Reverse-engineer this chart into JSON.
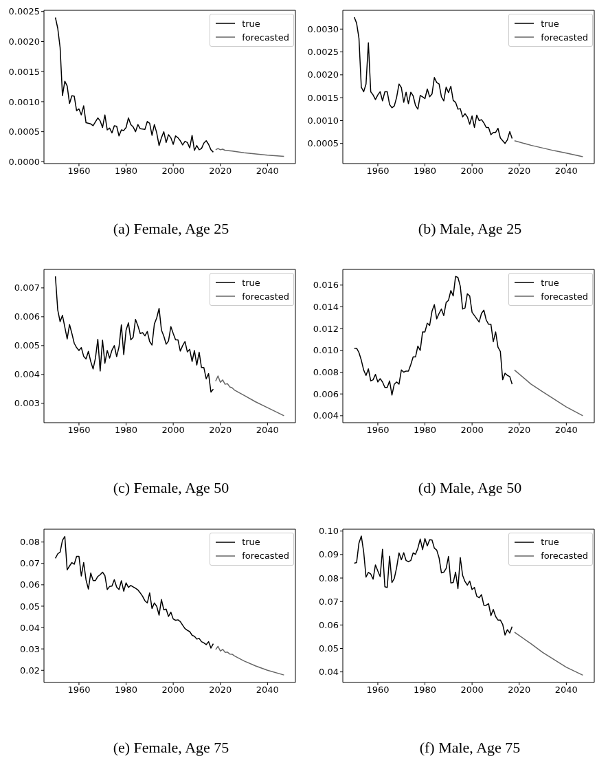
{
  "chart_data": [
    {
      "type": "line",
      "title": "(a) Female, Age 25",
      "xlim": [
        1945.15,
        2051.85
      ],
      "xticks": [
        1960,
        1980,
        2000,
        2020,
        2040
      ],
      "ylim": [
        -3e-05,
        0.00252
      ],
      "yticks": [
        {
          "value": 0,
          "label": "0.0000"
        },
        {
          "value": 0.0005,
          "label": "0.0005"
        },
        {
          "value": 0.001,
          "label": "0.0010"
        },
        {
          "value": 0.0015,
          "label": "0.0015"
        },
        {
          "value": 0.002,
          "label": "0.0020"
        },
        {
          "value": 0.0025,
          "label": "0.0025"
        }
      ],
      "legend": "top right",
      "series": [
        {
          "name": "true",
          "color": "#000000",
          "x": [
            1950,
            1951,
            1952,
            1953,
            1954,
            1955,
            1956,
            1957,
            1958,
            1959,
            1960,
            1961,
            1962,
            1963,
            1965,
            1966,
            1968,
            1969,
            1970,
            1971,
            1972,
            1973,
            1974,
            1975,
            1976,
            1977,
            1978,
            1979,
            1980,
            1981,
            1982,
            1983,
            1984,
            1985,
            1986,
            1988,
            1989,
            1990,
            1991,
            1992,
            1993,
            1994,
            1995,
            1996,
            1997,
            1998,
            1999,
            2000,
            2001,
            2002,
            2003,
            2004,
            2005,
            2006,
            2007,
            2008,
            2009,
            2010,
            2011,
            2012,
            2013,
            2014,
            2015,
            2016,
            2017
          ],
          "values": [
            0.0024,
            0.00222,
            0.0019,
            0.0011,
            0.00134,
            0.00126,
            0.00097,
            0.0011,
            0.00109,
            0.00085,
            0.00088,
            0.00078,
            0.00093,
            0.00065,
            0.00063,
            0.0006,
            0.00073,
            0.00068,
            0.00057,
            0.00078,
            0.00053,
            0.00056,
            0.00048,
            0.0006,
            0.00059,
            0.00043,
            0.00053,
            0.00052,
            0.00057,
            0.00073,
            0.00062,
            0.00058,
            0.0005,
            0.00062,
            0.00055,
            0.00054,
            0.00067,
            0.00064,
            0.00044,
            0.00062,
            0.00048,
            0.00027,
            0.0004,
            0.0005,
            0.00032,
            0.00045,
            0.0004,
            0.00029,
            0.00043,
            0.0004,
            0.00035,
            0.00028,
            0.00034,
            0.00032,
            0.00023,
            0.00044,
            0.00019,
            0.00027,
            0.0002,
            0.00022,
            0.00031,
            0.00035,
            0.00029,
            0.0002,
            0.00016
          ]
        },
        {
          "name": "forecasted",
          "color": "#666666",
          "x": [
            2018,
            2019,
            2020,
            2021,
            2022,
            2025,
            2030,
            2035,
            2040,
            2047
          ],
          "values": [
            0.0002,
            0.00022,
            0.0002,
            0.00021,
            0.00019,
            0.00018,
            0.00015,
            0.00013,
            0.00011,
            9e-05
          ]
        }
      ]
    },
    {
      "type": "line",
      "title": "(b) Male, Age 25",
      "xlim": [
        1945.15,
        2051.85
      ],
      "xticks": [
        1960,
        1980,
        2000,
        2020,
        2040
      ],
      "ylim": [
        6e-05,
        0.00341
      ],
      "yticks": [
        {
          "value": 0.0005,
          "label": "0.0005"
        },
        {
          "value": 0.001,
          "label": "0.0010"
        },
        {
          "value": 0.0015,
          "label": "0.0015"
        },
        {
          "value": 0.002,
          "label": "0.0020"
        },
        {
          "value": 0.0025,
          "label": "0.0025"
        },
        {
          "value": 0.003,
          "label": "0.0030"
        }
      ],
      "legend": "top right",
      "series": [
        {
          "name": "true",
          "color": "#000000",
          "x": [
            1950,
            1951,
            1952,
            1953,
            1954,
            1955,
            1956,
            1957,
            1958,
            1959,
            1960,
            1961,
            1962,
            1963,
            1964,
            1965,
            1966,
            1967,
            1968,
            1969,
            1970,
            1971,
            1972,
            1973,
            1974,
            1975,
            1976,
            1977,
            1978,
            1979,
            1980,
            1981,
            1982,
            1983,
            1984,
            1985,
            1986,
            1987,
            1988,
            1989,
            1990,
            1991,
            1992,
            1993,
            1994,
            1995,
            1996,
            1997,
            1998,
            1999,
            2000,
            2001,
            2002,
            2003,
            2004,
            2005,
            2006,
            2007,
            2008,
            2009,
            2010,
            2011,
            2012,
            2013,
            2014,
            2015,
            2016,
            2017
          ],
          "values": [
            0.00326,
            0.00313,
            0.0028,
            0.00173,
            0.00163,
            0.0018,
            0.0027,
            0.00163,
            0.00156,
            0.00146,
            0.00156,
            0.00163,
            0.00143,
            0.00163,
            0.00163,
            0.00135,
            0.00128,
            0.00132,
            0.00151,
            0.0018,
            0.00172,
            0.0014,
            0.00162,
            0.00137,
            0.00162,
            0.00154,
            0.00133,
            0.00125,
            0.00155,
            0.00152,
            0.00148,
            0.00169,
            0.00152,
            0.00158,
            0.00194,
            0.00183,
            0.0018,
            0.00152,
            0.00143,
            0.00173,
            0.00161,
            0.00175,
            0.00144,
            0.0014,
            0.00125,
            0.00126,
            0.00108,
            0.00115,
            0.00108,
            0.00092,
            0.0011,
            0.00085,
            0.00112,
            0.001,
            0.00102,
            0.00095,
            0.00085,
            0.00085,
            0.00069,
            0.00074,
            0.00074,
            0.00083,
            0.00062,
            0.00056,
            0.0005,
            0.00058,
            0.00076,
            0.00061
          ]
        },
        {
          "name": "forecasted",
          "color": "#666666",
          "x": [
            2018,
            2025,
            2030,
            2035,
            2040,
            2047
          ],
          "values": [
            0.00056,
            0.00046,
            0.0004,
            0.00034,
            0.00029,
            0.00021
          ]
        }
      ]
    },
    {
      "type": "line",
      "title": "(c) Female, Age 50",
      "xlim": [
        1945.15,
        2051.85
      ],
      "xticks": [
        1960,
        1980,
        2000,
        2020,
        2040
      ],
      "ylim": [
        0.00233,
        0.00764
      ],
      "yticks": [
        {
          "value": 0.003,
          "label": "0.003"
        },
        {
          "value": 0.004,
          "label": "0.004"
        },
        {
          "value": 0.005,
          "label": "0.005"
        },
        {
          "value": 0.006,
          "label": "0.006"
        },
        {
          "value": 0.007,
          "label": "0.007"
        }
      ],
      "legend": "top right",
      "series": [
        {
          "name": "true",
          "color": "#000000",
          "x": [
            1950,
            1951,
            1952,
            1953,
            1955,
            1956,
            1957,
            1958,
            1959,
            1960,
            1961,
            1962,
            1963,
            1964,
            1965,
            1966,
            1967,
            1968,
            1969,
            1970,
            1971,
            1972,
            1973,
            1974,
            1975,
            1976,
            1977,
            1978,
            1979,
            1980,
            1981,
            1982,
            1983,
            1984,
            1985,
            1986,
            1987,
            1988,
            1989,
            1990,
            1991,
            1992,
            1993,
            1994,
            1995,
            1996,
            1997,
            1998,
            1999,
            2000,
            2001,
            2002,
            2003,
            2004,
            2005,
            2006,
            2007,
            2008,
            2009,
            2010,
            2011,
            2012,
            2013,
            2014,
            2015,
            2016,
            2017
          ],
          "values": [
            0.0074,
            0.00623,
            0.00583,
            0.00605,
            0.00523,
            0.00573,
            0.00542,
            0.00508,
            0.00493,
            0.00483,
            0.00493,
            0.00463,
            0.00454,
            0.0048,
            0.00445,
            0.00419,
            0.00457,
            0.00522,
            0.00412,
            0.00519,
            0.00439,
            0.00483,
            0.00457,
            0.00484,
            0.005,
            0.00462,
            0.00496,
            0.00572,
            0.00469,
            0.00554,
            0.00579,
            0.0052,
            0.00529,
            0.00591,
            0.00569,
            0.00542,
            0.00545,
            0.00534,
            0.00549,
            0.00514,
            0.00502,
            0.00575,
            0.00596,
            0.00629,
            0.00554,
            0.00533,
            0.00505,
            0.00516,
            0.00566,
            0.00542,
            0.0052,
            0.0052,
            0.00481,
            0.005,
            0.00514,
            0.00478,
            0.00487,
            0.00445,
            0.00483,
            0.00433,
            0.00477,
            0.00424,
            0.00424,
            0.00385,
            0.00403,
            0.00339,
            0.00349
          ]
        },
        {
          "name": "forecasted",
          "color": "#666666",
          "x": [
            2018,
            2019,
            2020,
            2021,
            2022,
            2023,
            2024,
            2025,
            2026,
            2030,
            2035,
            2040,
            2047
          ],
          "values": [
            0.00377,
            0.00395,
            0.00373,
            0.00381,
            0.00366,
            0.00368,
            0.00357,
            0.00354,
            0.00346,
            0.00328,
            0.00305,
            0.00285,
            0.00257
          ]
        }
      ]
    },
    {
      "type": "line",
      "title": "(d) Male, Age 50",
      "xlim": [
        1945.15,
        2051.85
      ],
      "xticks": [
        1960,
        1980,
        2000,
        2020,
        2040
      ],
      "ylim": [
        0.00336,
        0.01744
      ],
      "yticks": [
        {
          "value": 0.004,
          "label": "0.004"
        },
        {
          "value": 0.006,
          "label": "0.006"
        },
        {
          "value": 0.008,
          "label": "0.008"
        },
        {
          "value": 0.01,
          "label": "0.010"
        },
        {
          "value": 0.012,
          "label": "0.012"
        },
        {
          "value": 0.014,
          "label": "0.014"
        },
        {
          "value": 0.016,
          "label": "0.016"
        }
      ],
      "legend": "top right",
      "series": [
        {
          "name": "true",
          "color": "#000000",
          "x": [
            1950,
            1951,
            1952,
            1953,
            1954,
            1955,
            1956,
            1957,
            1958,
            1959,
            1960,
            1961,
            1962,
            1963,
            1964,
            1965,
            1966,
            1967,
            1968,
            1969,
            1970,
            1971,
            1972,
            1973,
            1974,
            1975,
            1976,
            1977,
            1978,
            1979,
            1980,
            1981,
            1982,
            1983,
            1984,
            1985,
            1986,
            1987,
            1988,
            1989,
            1990,
            1991,
            1992,
            1993,
            1994,
            1995,
            1996,
            1997,
            1998,
            1999,
            2000,
            2001,
            2002,
            2003,
            2004,
            2005,
            2006,
            2007,
            2008,
            2009,
            2010,
            2011,
            2012,
            2013,
            2014,
            2015,
            2016,
            2017
          ],
          "values": [
            0.0102,
            0.0102,
            0.0098,
            0.0091,
            0.0082,
            0.0077,
            0.0083,
            0.0072,
            0.0073,
            0.0078,
            0.0071,
            0.0074,
            0.0071,
            0.0066,
            0.0066,
            0.0072,
            0.0059,
            0.0069,
            0.0071,
            0.0069,
            0.0082,
            0.008,
            0.0081,
            0.0081,
            0.0087,
            0.0094,
            0.0094,
            0.0104,
            0.01,
            0.0117,
            0.0117,
            0.0125,
            0.0123,
            0.0136,
            0.0142,
            0.0129,
            0.0134,
            0.0138,
            0.0132,
            0.0144,
            0.0146,
            0.0155,
            0.015,
            0.0168,
            0.0167,
            0.0159,
            0.0138,
            0.0139,
            0.0152,
            0.015,
            0.0135,
            0.0132,
            0.0129,
            0.0126,
            0.0134,
            0.0137,
            0.0128,
            0.0124,
            0.0124,
            0.0108,
            0.0117,
            0.0103,
            0.0099,
            0.0073,
            0.0079,
            0.0077,
            0.0076,
            0.0069
          ]
        },
        {
          "name": "forecasted",
          "color": "#666666",
          "x": [
            2018,
            2025,
            2030,
            2035,
            2040,
            2047
          ],
          "values": [
            0.0082,
            0.0069,
            0.0062,
            0.0055,
            0.0048,
            0.004
          ]
        }
      ]
    },
    {
      "type": "line",
      "title": "(e) Female, Age 75",
      "xlim": [
        1945.15,
        2051.85
      ],
      "xticks": [
        1960,
        1980,
        2000,
        2020,
        2040
      ],
      "ylim": [
        0.0143,
        0.086
      ],
      "yticks": [
        {
          "value": 0.02,
          "label": "0.02"
        },
        {
          "value": 0.03,
          "label": "0.03"
        },
        {
          "value": 0.04,
          "label": "0.04"
        },
        {
          "value": 0.05,
          "label": "0.05"
        },
        {
          "value": 0.06,
          "label": "0.06"
        },
        {
          "value": 0.07,
          "label": "0.07"
        },
        {
          "value": 0.08,
          "label": "0.08"
        }
      ],
      "legend": "top right",
      "series": [
        {
          "name": "true",
          "color": "#000000",
          "x": [
            1950,
            1951,
            1952,
            1953,
            1954,
            1955,
            1956,
            1957,
            1958,
            1959,
            1960,
            1961,
            1962,
            1963,
            1964,
            1965,
            1966,
            1967,
            1968,
            1969,
            1970,
            1971,
            1972,
            1973,
            1974,
            1975,
            1976,
            1977,
            1978,
            1979,
            1980,
            1981,
            1982,
            1983,
            1984,
            1985,
            1986,
            1987,
            1988,
            1989,
            1990,
            1991,
            1992,
            1993,
            1994,
            1995,
            1996,
            1997,
            1998,
            1999,
            2000,
            2001,
            2002,
            2003,
            2004,
            2005,
            2006,
            2007,
            2008,
            2009,
            2010,
            2011,
            2012,
            2013,
            2014,
            2015,
            2016,
            2017
          ],
          "values": [
            0.0724,
            0.0745,
            0.0753,
            0.0808,
            0.0826,
            0.067,
            0.0688,
            0.0704,
            0.0696,
            0.0733,
            0.0733,
            0.0641,
            0.0704,
            0.0623,
            0.058,
            0.0655,
            0.062,
            0.062,
            0.0639,
            0.0647,
            0.0659,
            0.0643,
            0.0578,
            0.0592,
            0.0594,
            0.0624,
            0.0589,
            0.0578,
            0.0619,
            0.057,
            0.0609,
            0.0588,
            0.0597,
            0.059,
            0.0584,
            0.0576,
            0.0562,
            0.0546,
            0.0525,
            0.0515,
            0.0562,
            0.0489,
            0.0515,
            0.0499,
            0.0458,
            0.0531,
            0.0483,
            0.0486,
            0.0452,
            0.0472,
            0.044,
            0.0434,
            0.0436,
            0.0428,
            0.0411,
            0.0395,
            0.0387,
            0.0381,
            0.0364,
            0.0359,
            0.0346,
            0.0349,
            0.0334,
            0.0328,
            0.032,
            0.0334,
            0.0304,
            0.0324
          ]
        },
        {
          "name": "forecasted",
          "color": "#666666",
          "x": [
            2018,
            2019,
            2020,
            2021,
            2022,
            2023,
            2024,
            2025,
            2026,
            2030,
            2035,
            2040,
            2047
          ],
          "values": [
            0.0297,
            0.0312,
            0.029,
            0.0298,
            0.0284,
            0.0285,
            0.0276,
            0.0275,
            0.0267,
            0.0244,
            0.022,
            0.02,
            0.0178
          ]
        }
      ]
    },
    {
      "type": "line",
      "title": "(f) Male, Age 75",
      "xlim": [
        1945.15,
        2051.85
      ],
      "xticks": [
        1960,
        1980,
        2000,
        2020,
        2040
      ],
      "ylim": [
        0.0355,
        0.1008
      ],
      "yticks": [
        {
          "value": 0.04,
          "label": "0.04"
        },
        {
          "value": 0.05,
          "label": "0.05"
        },
        {
          "value": 0.06,
          "label": "0.06"
        },
        {
          "value": 0.07,
          "label": "0.07"
        },
        {
          "value": 0.08,
          "label": "0.08"
        },
        {
          "value": 0.09,
          "label": "0.09"
        },
        {
          "value": 0.1,
          "label": "0.10"
        }
      ],
      "legend": "top right",
      "series": [
        {
          "name": "true",
          "color": "#000000",
          "x": [
            1950,
            1951,
            1952,
            1953,
            1954,
            1955,
            1956,
            1957,
            1958,
            1959,
            1960,
            1961,
            1962,
            1963,
            1964,
            1965,
            1966,
            1967,
            1968,
            1969,
            1970,
            1971,
            1972,
            1973,
            1974,
            1975,
            1976,
            1977,
            1978,
            1979,
            1980,
            1981,
            1982,
            1983,
            1984,
            1985,
            1986,
            1987,
            1988,
            1989,
            1990,
            1991,
            1992,
            1993,
            1994,
            1995,
            1996,
            1997,
            1998,
            1999,
            2000,
            2001,
            2002,
            2003,
            2004,
            2005,
            2006,
            2007,
            2008,
            2009,
            2010,
            2011,
            2012,
            2013,
            2014,
            2015,
            2016,
            2017
          ],
          "values": [
            0.0863,
            0.0866,
            0.0949,
            0.0979,
            0.0912,
            0.0804,
            0.0824,
            0.0817,
            0.0795,
            0.0856,
            0.083,
            0.0806,
            0.0922,
            0.0763,
            0.076,
            0.0893,
            0.0781,
            0.0798,
            0.0845,
            0.0907,
            0.0878,
            0.0908,
            0.0875,
            0.0869,
            0.0875,
            0.0907,
            0.0901,
            0.0927,
            0.0966,
            0.0921,
            0.0968,
            0.0937,
            0.0963,
            0.0962,
            0.0927,
            0.0919,
            0.0886,
            0.0822,
            0.0825,
            0.0841,
            0.0892,
            0.0779,
            0.0781,
            0.0825,
            0.0755,
            0.0887,
            0.0811,
            0.0785,
            0.077,
            0.0787,
            0.0751,
            0.076,
            0.0722,
            0.0716,
            0.0729,
            0.0684,
            0.0684,
            0.0691,
            0.064,
            0.0666,
            0.0636,
            0.0621,
            0.0621,
            0.0602,
            0.0557,
            0.058,
            0.0566,
            0.0593
          ]
        },
        {
          "name": "forecasted",
          "color": "#666666",
          "x": [
            2018,
            2025,
            2030,
            2035,
            2040,
            2047
          ],
          "values": [
            0.0569,
            0.052,
            0.0483,
            0.0451,
            0.042,
            0.0386
          ]
        }
      ]
    }
  ]
}
